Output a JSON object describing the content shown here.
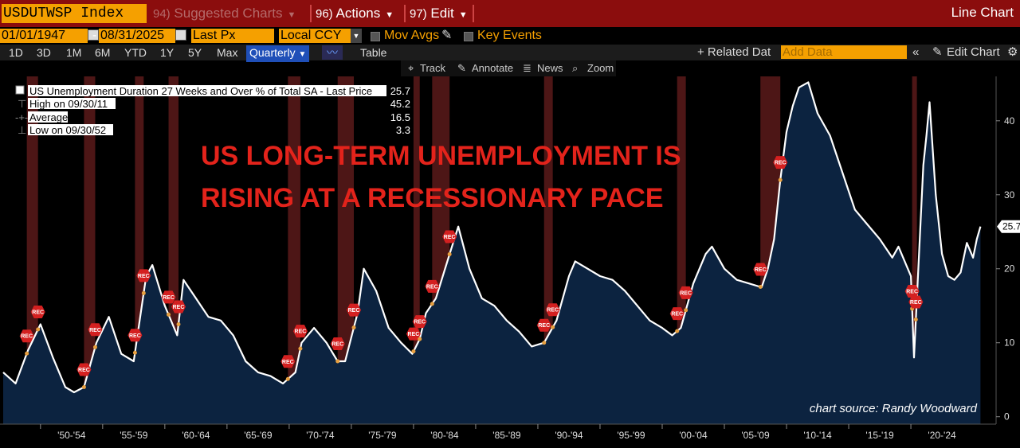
{
  "toolbar": {
    "ticker": "USDUTWSP Index",
    "suggested_num": "94)",
    "suggested_label": "Suggested Charts",
    "actions_num": "96)",
    "actions_label": "Actions",
    "edit_num": "97)",
    "edit_label": "Edit",
    "chart_type": "Line Chart"
  },
  "controls": {
    "start_date": "01/01/1947",
    "date_dash": "-",
    "end_date": "08/31/2025",
    "field": "Last Px",
    "currency": "Local CCY",
    "mov_avgs": "Mov Avgs",
    "key_events": "Key Events"
  },
  "periods": [
    "1D",
    "3D",
    "1M",
    "6M",
    "YTD",
    "1Y",
    "5Y",
    "Max"
  ],
  "frequency": "Quarterly",
  "table_label": "Table",
  "related_data": "+ Related Dat",
  "add_data_placeholder": "Add Data",
  "edit_chart": "Edit Chart",
  "tools": {
    "track": "Track",
    "annotate": "Annotate",
    "news": "News",
    "zoom": "Zoom"
  },
  "legend": {
    "rows": [
      {
        "label": "US Unemployment Duration 27 Weeks and Over % of Total SA - Last Price",
        "value": "25.7"
      },
      {
        "label": "High on 09/30/11",
        "value": "45.2"
      },
      {
        "label": "Average",
        "value": "16.5"
      },
      {
        "label": "Low on 09/30/52",
        "value": "3.3"
      }
    ]
  },
  "headline": {
    "line1": "US LONG-TERM UNEMPLOYMENT IS",
    "line2": "RISING AT A RECESSIONARY PACE"
  },
  "source": "chart source: Randy Woodward",
  "rec_label": "REC",
  "last_value_label": "25.7",
  "colors": {
    "accent": "#f5a000",
    "topbar": "#8b0d0d",
    "headline": "#e3231b",
    "area": "#0c2340",
    "line": "#ffffff",
    "recession": "#5a1a1a"
  },
  "chart_data": {
    "type": "area",
    "title": "US Unemployment Duration 27 Weeks and Over % of Total SA - Last Price",
    "xlabel": "",
    "ylabel": "",
    "x_range": [
      1947.0,
      2025.7
    ],
    "ylim": [
      -1,
      46
    ],
    "yticks": [
      0,
      10,
      20,
      30,
      40
    ],
    "xticks": [
      "'50-'54",
      "'55-'59",
      "'60-'64",
      "'65-'69",
      "'70-'74",
      "'75-'79",
      "'80-'84",
      "'85-'89",
      "'90-'94",
      "'95-'99",
      "'00-'04",
      "'05-'09",
      "'10-'14",
      "'15-'19",
      "'20-'24"
    ],
    "recessions": [
      [
        1948.9,
        1949.8
      ],
      [
        1953.5,
        1954.4
      ],
      [
        1957.6,
        1958.3
      ],
      [
        1960.3,
        1961.1
      ],
      [
        1969.9,
        1970.9
      ],
      [
        1973.9,
        1975.2
      ],
      [
        1980.0,
        1980.5
      ],
      [
        1981.5,
        1982.9
      ],
      [
        1990.5,
        1991.2
      ],
      [
        2001.2,
        2001.9
      ],
      [
        2007.9,
        2009.5
      ],
      [
        2020.1,
        2020.4
      ]
    ],
    "series": [
      {
        "name": "US Unemployment Duration 27 Weeks and Over % of Total SA - Last Price",
        "x": [
          1947.0,
          1948.0,
          1949.0,
          1950.0,
          1951.0,
          1952.0,
          1952.7,
          1953.5,
          1954.5,
          1955.5,
          1956.5,
          1957.5,
          1958.5,
          1959.0,
          1960.0,
          1961.0,
          1961.5,
          1962.5,
          1963.5,
          1964.5,
          1965.5,
          1966.5,
          1967.5,
          1968.5,
          1969.5,
          1970.5,
          1971.0,
          1972.0,
          1973.0,
          1973.9,
          1974.5,
          1975.5,
          1976.0,
          1977.0,
          1978.0,
          1979.0,
          1979.9,
          1980.5,
          1981.0,
          1981.8,
          1983.0,
          1983.6,
          1984.5,
          1985.5,
          1986.5,
          1987.5,
          1988.5,
          1989.5,
          1990.5,
          1991.5,
          1992.5,
          1993.0,
          1994.0,
          1995.0,
          1996.0,
          1997.0,
          1998.0,
          1999.0,
          2000.0,
          2000.8,
          2001.5,
          2002.5,
          2003.5,
          2004.0,
          2005.0,
          2006.0,
          2007.0,
          2008.0,
          2008.5,
          2009.0,
          2009.5,
          2010.0,
          2010.5,
          2011.0,
          2011.75,
          2012.5,
          2013.5,
          2014.5,
          2015.5,
          2016.5,
          2017.5,
          2018.5,
          2019.0,
          2019.5,
          2020.0,
          2020.25,
          2020.6,
          2021.0,
          2021.25,
          2021.5,
          2022.0,
          2022.5,
          2023.0,
          2023.5,
          2024.0,
          2024.5,
          2025.0,
          2025.3,
          2025.6
        ],
        "values": [
          6.0,
          4.5,
          9.0,
          12.5,
          8.0,
          4.0,
          3.3,
          4.0,
          10.0,
          13.5,
          8.5,
          7.5,
          19.0,
          20.5,
          15.0,
          11.0,
          18.5,
          16.0,
          13.5,
          13.0,
          11.0,
          7.5,
          6.0,
          5.5,
          4.5,
          6.0,
          10.0,
          12.0,
          10.0,
          7.5,
          7.5,
          14.0,
          20.0,
          17.0,
          12.0,
          10.0,
          8.5,
          10.5,
          14.0,
          16.0,
          22.5,
          25.7,
          20.0,
          16.0,
          15.0,
          13.0,
          11.5,
          9.5,
          10.0,
          13.0,
          19.0,
          21.0,
          20.0,
          19.0,
          18.5,
          17.0,
          15.0,
          13.0,
          12.0,
          11.0,
          12.0,
          18.0,
          22.0,
          23.0,
          20.0,
          18.5,
          18.0,
          17.5,
          20.0,
          24.0,
          32.0,
          38.5,
          42.0,
          44.5,
          45.2,
          41.0,
          38.0,
          33.0,
          28.0,
          26.0,
          24.0,
          21.5,
          23.0,
          21.0,
          19.0,
          8.0,
          20.0,
          34.0,
          38.0,
          42.5,
          30.0,
          22.0,
          19.0,
          18.5,
          19.5,
          23.5,
          21.5,
          24.0,
          25.7
        ]
      }
    ],
    "reference_lines": [
      {
        "name": "Average",
        "value": 16.5
      },
      {
        "name": "High on 09/30/11",
        "value": 45.2
      },
      {
        "name": "Low on 09/30/52",
        "value": 3.3
      }
    ],
    "legend_position": "top-left",
    "grid": false
  }
}
